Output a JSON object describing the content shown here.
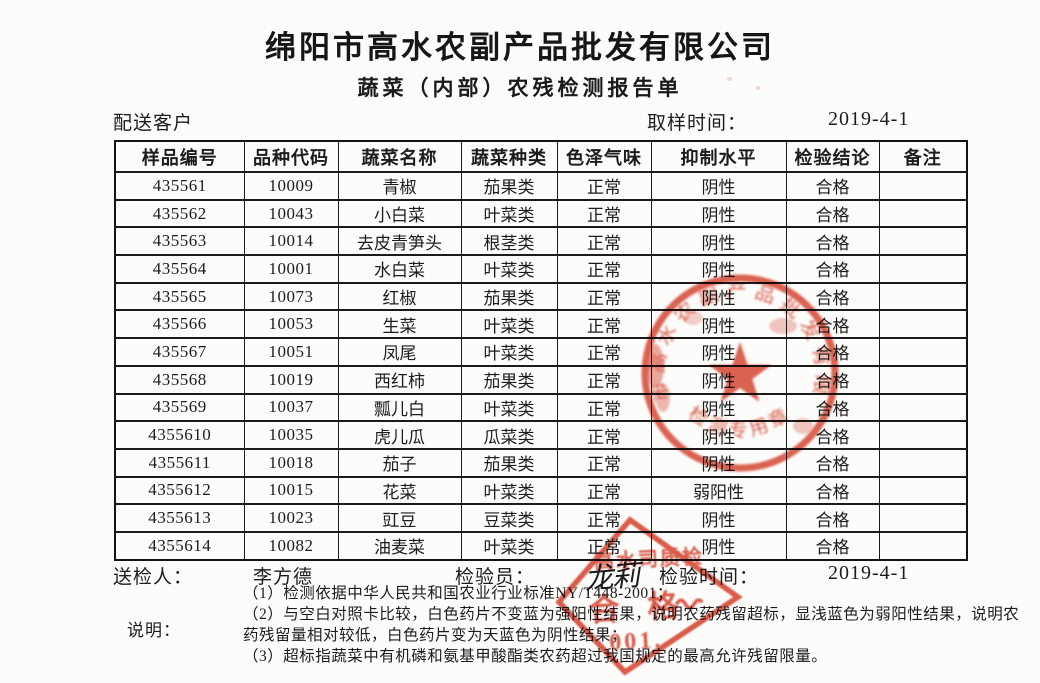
{
  "page": {
    "title": "绵阳市高水农副产品批发有限公司",
    "subtitle": "蔬菜（内部）农残检测报告单"
  },
  "meta": {
    "client_label": "配送客户",
    "sampling_time_label": "取样时间：",
    "sampling_time_value": "2019-4-1"
  },
  "table": {
    "headers": [
      "样品编号",
      "品种代码",
      "蔬菜名称",
      "蔬菜种类",
      "色泽气味",
      "抑制水平",
      "检验结论",
      "备注"
    ],
    "rows": [
      [
        "435561",
        "10009",
        "青椒",
        "茄果类",
        "正常",
        "阴性",
        "合格",
        ""
      ],
      [
        "435562",
        "10043",
        "小白菜",
        "叶菜类",
        "正常",
        "阴性",
        "合格",
        ""
      ],
      [
        "435563",
        "10014",
        "去皮青笋头",
        "根茎类",
        "正常",
        "阴性",
        "合格",
        ""
      ],
      [
        "435564",
        "10001",
        "水白菜",
        "叶菜类",
        "正常",
        "阴性",
        "合格",
        ""
      ],
      [
        "435565",
        "10073",
        "红椒",
        "茄果类",
        "正常",
        "阴性",
        "合格",
        ""
      ],
      [
        "435566",
        "10053",
        "生菜",
        "叶菜类",
        "正常",
        "阴性",
        "合格",
        ""
      ],
      [
        "435567",
        "10051",
        "凤尾",
        "叶菜类",
        "正常",
        "阴性",
        "合格",
        ""
      ],
      [
        "435568",
        "10019",
        "西红柿",
        "茄果类",
        "正常",
        "阴性",
        "合格",
        ""
      ],
      [
        "435569",
        "10037",
        "瓢儿白",
        "叶菜类",
        "正常",
        "阴性",
        "合格",
        ""
      ],
      [
        "4355610",
        "10035",
        "虎儿瓜",
        "瓜菜类",
        "正常",
        "阴性",
        "合格",
        ""
      ],
      [
        "4355611",
        "10018",
        "茄子",
        "茄果类",
        "正常",
        "阴性",
        "合格",
        ""
      ],
      [
        "4355612",
        "10015",
        "花菜",
        "叶菜类",
        "正常",
        "弱阳性",
        "合格",
        ""
      ],
      [
        "4355613",
        "10023",
        "豇豆",
        "豆菜类",
        "正常",
        "阴性",
        "合格",
        ""
      ],
      [
        "4355614",
        "10082",
        "油麦菜",
        "叶菜类",
        "正常",
        "阴性",
        "合格",
        ""
      ]
    ]
  },
  "signatures": {
    "sender_label": "送检人：",
    "sender_value": "李方德",
    "inspector_label": "检验员：",
    "inspector_value": "龙莉",
    "inspection_time_label": "检验时间：",
    "inspection_time_value": "2019-4-1"
  },
  "notes": {
    "label": "说明：",
    "lines": [
      "（1）检测依据中华人民共和国农业行业标准NY/T448-2001；",
      "（2）与空白对照卡比较，白色药片不变蓝为强阳性结果，说明农药残留超标，显浅蓝色为弱阳性结果，说明农",
      "药残留量相对较低，白色药片变为天蓝色为阴性结果；",
      "（3）超标指蔬菜中有机磷和氨基甲酸酯类农药超过我国规定的最高允许残留限量。"
    ]
  },
  "stamps": {
    "round_seal": {
      "arc_text": "绵阳市高水农副产品批发有限公司",
      "bottom_text": "检测专用章",
      "color": "#d6402a"
    },
    "diamond_seal": {
      "line1": "高水司质检",
      "line2": "合 格",
      "line3": "001.",
      "color": "#d6402a"
    }
  }
}
